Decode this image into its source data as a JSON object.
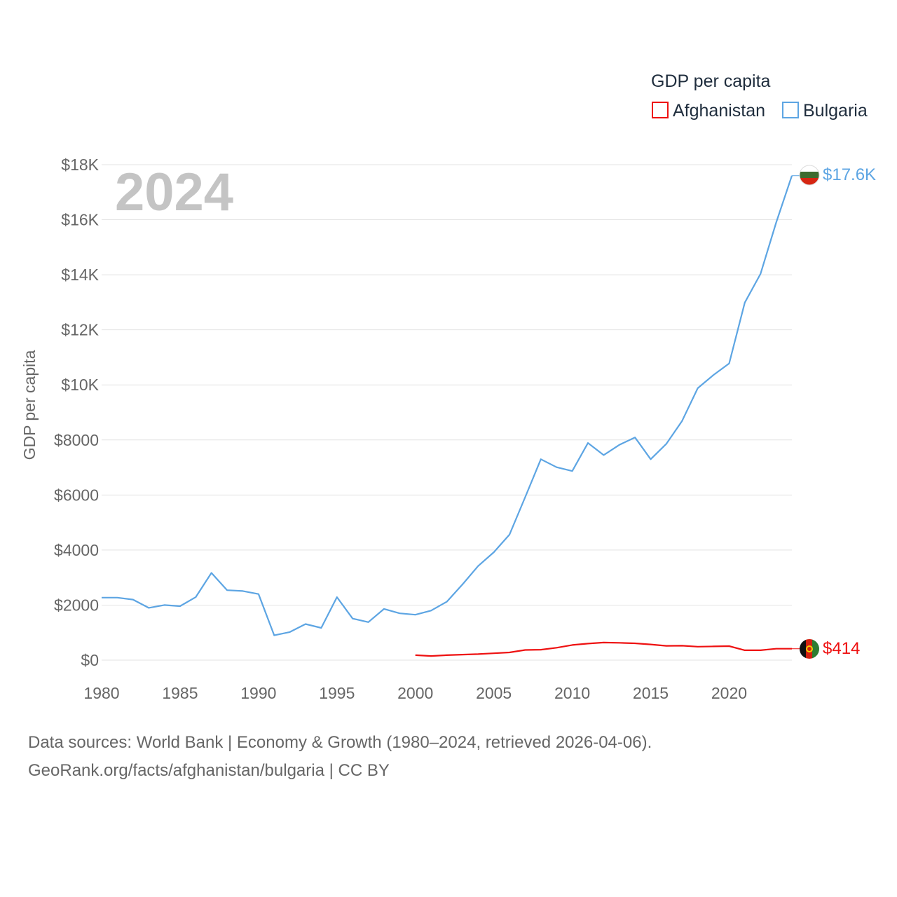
{
  "legend": {
    "title": "GDP per capita",
    "items": [
      {
        "name": "Afghanistan",
        "color": "#ee1111"
      },
      {
        "name": "Bulgaria",
        "color": "#5da5e3"
      }
    ]
  },
  "year_label": "2024",
  "footer": {
    "line1": "Data sources: World Bank | Economy & Growth (1980–2024, retrieved 2026-04-06).",
    "line2": "GeoRank.org/facts/afghanistan/bulgaria | CC BY"
  },
  "chart_data": {
    "type": "line",
    "title": "GDP per capita",
    "ylabel": "GDP per capita",
    "xlabel": "",
    "xlim": [
      1980,
      2024
    ],
    "ylim": [
      0,
      18000
    ],
    "grid": true,
    "legend_position": "top-right",
    "x_ticks": [
      1980,
      1985,
      1990,
      1995,
      2000,
      2005,
      2010,
      2015,
      2020
    ],
    "x_tick_labels": [
      "1980",
      "1985",
      "1990",
      "1995",
      "2000",
      "2005",
      "2010",
      "2015",
      "2020"
    ],
    "y_ticks": [
      0,
      2000,
      4000,
      6000,
      8000,
      10000,
      12000,
      14000,
      16000,
      18000
    ],
    "y_tick_labels": [
      "$0",
      "$2000",
      "$4000",
      "$6000",
      "$8000",
      "$10K",
      "$12K",
      "$14K",
      "$16K",
      "$18K"
    ],
    "series": [
      {
        "name": "Bulgaria",
        "color": "#5da5e3",
        "end_label": "$17.6K",
        "flag": "bulgaria-flag",
        "x": [
          1980,
          1981,
          1982,
          1983,
          1984,
          1985,
          1986,
          1987,
          1988,
          1989,
          1990,
          1991,
          1992,
          1993,
          1994,
          1995,
          1996,
          1997,
          1998,
          1999,
          2000,
          2001,
          2002,
          2003,
          2004,
          2005,
          2006,
          2007,
          2008,
          2009,
          2010,
          2011,
          2012,
          2013,
          2014,
          2015,
          2016,
          2017,
          2018,
          2019,
          2020,
          2021,
          2022,
          2023,
          2024
        ],
        "values": [
          2270,
          2270,
          2200,
          1900,
          2000,
          1960,
          2290,
          3170,
          2540,
          2510,
          2400,
          900,
          1020,
          1310,
          1170,
          2290,
          1510,
          1380,
          1860,
          1700,
          1650,
          1800,
          2120,
          2750,
          3420,
          3920,
          4560,
          5920,
          7300,
          7010,
          6870,
          7890,
          7450,
          7820,
          8090,
          7300,
          7860,
          8690,
          9880,
          10360,
          10780,
          12990,
          14030,
          15900,
          17600
        ]
      },
      {
        "name": "Afghanistan",
        "color": "#ee1111",
        "end_label": "$414",
        "flag": "afghanistan-flag",
        "x": [
          2000,
          2001,
          2002,
          2003,
          2004,
          2005,
          2006,
          2007,
          2008,
          2009,
          2010,
          2011,
          2012,
          2013,
          2014,
          2015,
          2016,
          2017,
          2018,
          2019,
          2020,
          2021,
          2022,
          2023,
          2024
        ],
        "values": [
          180,
          150,
          180,
          200,
          220,
          250,
          280,
          370,
          380,
          450,
          550,
          600,
          640,
          630,
          610,
          570,
          520,
          525,
          490,
          500,
          510,
          360,
          360,
          415,
          414
        ]
      }
    ]
  }
}
